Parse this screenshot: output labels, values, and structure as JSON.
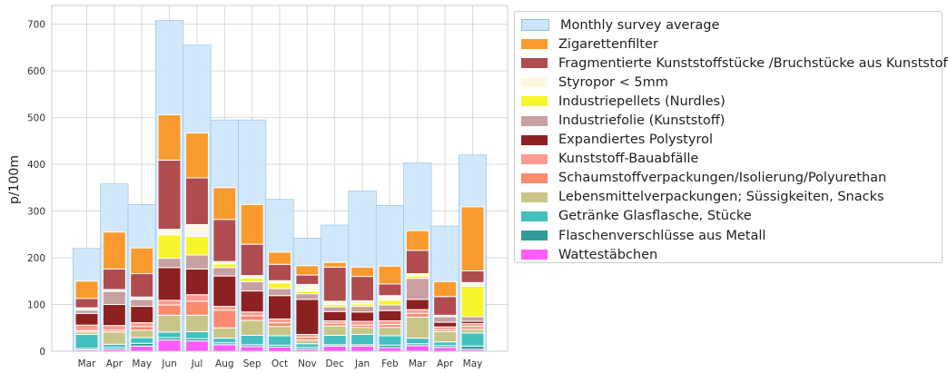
{
  "chart_data": {
    "type": "bar",
    "title": "",
    "xlabel": "",
    "ylabel": "p/100m",
    "ylim": [
      0,
      740
    ],
    "yticks": [
      0,
      100,
      200,
      300,
      400,
      500,
      600,
      700
    ],
    "grid": true,
    "legend_position": "right",
    "categories": [
      "Mar",
      "Apr",
      "May",
      "Jun",
      "Jul",
      "Aug",
      "Sep",
      "Oct",
      "Nov",
      "Dec",
      "Jan",
      "Feb",
      "Mar",
      "Apr",
      "May"
    ],
    "background_series": {
      "name": "Monthly survey average",
      "color": "#cce5fb",
      "edge": "#8ec0e0",
      "values": [
        220,
        358,
        314,
        708,
        655,
        495,
        495,
        325,
        242,
        270,
        343,
        312,
        403,
        268,
        420
      ]
    },
    "stacked_series": [
      {
        "name": "Wattestäbchen",
        "color": "#ff5cff",
        "values": [
          3,
          4,
          11,
          24,
          22,
          14,
          10,
          9,
          4,
          11,
          11,
          8,
          12,
          8,
          4
        ]
      },
      {
        "name": "Flaschenverschlüsse aus Metall",
        "color": "#2f9c9a",
        "values": [
          3,
          4,
          6,
          5,
          5,
          4,
          4,
          4,
          4,
          3,
          3,
          5,
          4,
          4,
          7
        ]
      },
      {
        "name": "Getränke Glasflasche, Stücke",
        "color": "#44bfbf",
        "values": [
          30,
          7,
          12,
          12,
          15,
          10,
          20,
          20,
          8,
          20,
          22,
          20,
          12,
          8,
          28
        ]
      },
      {
        "name": "Lebensmittelverpackungen; Süssigkeiten, Snacks",
        "color": "#c8c589",
        "values": [
          5,
          26,
          16,
          36,
          35,
          22,
          32,
          20,
          8,
          20,
          15,
          18,
          45,
          22,
          8
        ]
      },
      {
        "name": "Schaumstoffverpackungen/Isolierung/Polyurethan",
        "color": "#fb8a6e",
        "values": [
          3,
          4,
          8,
          22,
          30,
          38,
          10,
          8,
          6,
          6,
          5,
          6,
          8,
          4,
          6
        ]
      },
      {
        "name": "Kunststoff-Bauabfälle",
        "color": "#ff9a90",
        "values": [
          12,
          10,
          8,
          10,
          14,
          8,
          8,
          8,
          6,
          5,
          8,
          8,
          8,
          6,
          6
        ]
      },
      {
        "name": "Expandiertes Polystyrol",
        "color": "#8d2020",
        "values": [
          25,
          45,
          35,
          70,
          55,
          65,
          45,
          50,
          75,
          20,
          20,
          22,
          22,
          10,
          5
        ]
      },
      {
        "name": "Industriefolie (Kunststoff)",
        "color": "#c8a0a2",
        "values": [
          7,
          28,
          15,
          20,
          30,
          18,
          20,
          15,
          12,
          10,
          12,
          12,
          45,
          12,
          10
        ]
      },
      {
        "name": "Industriepellets (Nurdles)",
        "color": "#f5f52a",
        "values": [
          0,
          0,
          0,
          50,
          40,
          8,
          8,
          12,
          5,
          5,
          5,
          10,
          5,
          0,
          65
        ]
      },
      {
        "name": "Styropor < 5mm",
        "color": "#fdf8e2",
        "values": [
          5,
          4,
          5,
          12,
          25,
          5,
          5,
          5,
          15,
          7,
          7,
          10,
          5,
          3,
          8
        ]
      },
      {
        "name": "Fragmentierte Kunststoffstücke /Bruchstücke aus Kunststoff",
        "color": "#b04c50",
        "values": [
          20,
          44,
          50,
          148,
          100,
          90,
          67,
          35,
          20,
          73,
          52,
          25,
          50,
          40,
          25
        ]
      },
      {
        "name": "Zigarettenfilter",
        "color": "#f99a2e",
        "values": [
          37,
          79,
          55,
          97,
          96,
          68,
          85,
          26,
          20,
          10,
          20,
          38,
          42,
          32,
          137
        ]
      }
    ],
    "legend_order": [
      "Monthly survey average",
      "Zigarettenfilter",
      "Fragmentierte Kunststoffstücke /Bruchstücke aus Kunststoff",
      "Styropor < 5mm",
      "Industriepellets (Nurdles)",
      "Industriefolie (Kunststoff)",
      "Expandiertes Polystyrol",
      "Kunststoff-Bauabfälle",
      "Schaumstoffverpackungen/Isolierung/Polyurethan",
      "Lebensmittelverpackungen; Süssigkeiten, Snacks",
      "Getränke Glasflasche, Stücke",
      "Flaschenverschlüsse aus Metall",
      "Wattestäbchen"
    ]
  }
}
